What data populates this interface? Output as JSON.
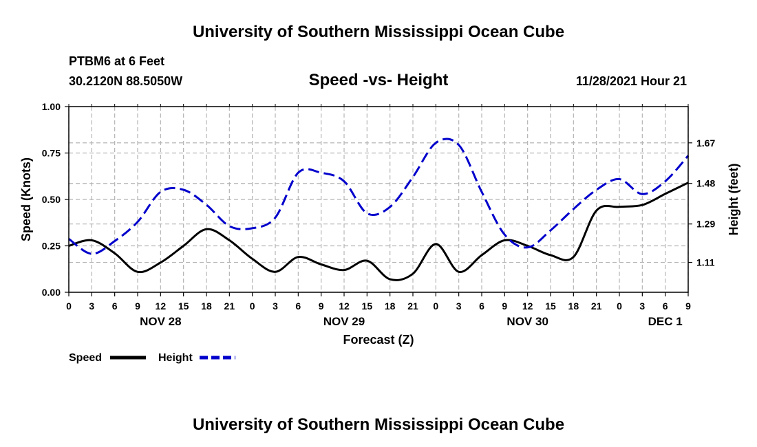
{
  "header": {
    "title": "University of Southern Mississippi Ocean Cube",
    "station": "PTBM6 at 6 Feet",
    "coords": "30.2120N  88.5050W",
    "subtitle": "Speed -vs- Height",
    "datetime": "11/28/2021 Hour 21",
    "footer_title": "University of Southern Mississippi Ocean Cube"
  },
  "chart_data": {
    "type": "line",
    "title": "Speed -vs- Height",
    "xlabel": "Forecast (Z)",
    "ylabel": "Speed (Knots)",
    "y2label": "Height (feet)",
    "xlim": [
      0,
      81
    ],
    "ylim": [
      0,
      1.0
    ],
    "y2lim": [
      0.97,
      1.84
    ],
    "grid": true,
    "x_ticks": [
      0,
      3,
      6,
      9,
      12,
      15,
      18,
      21,
      24,
      27,
      30,
      33,
      36,
      39,
      42,
      45,
      48,
      51,
      54,
      57,
      60,
      63,
      66,
      69,
      72,
      75,
      78,
      81
    ],
    "x_tick_labels": [
      "0",
      "3",
      "6",
      "9",
      "12",
      "15",
      "18",
      "21",
      "0",
      "3",
      "6",
      "9",
      "12",
      "15",
      "18",
      "21",
      "0",
      "3",
      "6",
      "9",
      "12",
      "15",
      "18",
      "21",
      "0",
      "3",
      "6",
      "9"
    ],
    "y_ticks": [
      0,
      0.25,
      0.5,
      0.75,
      1.0
    ],
    "y_tick_labels": [
      "0.00",
      "0.25",
      "0.50",
      "0.75",
      "1.00"
    ],
    "y2_ticks": [
      1.11,
      1.29,
      1.48,
      1.67
    ],
    "y2_tick_labels": [
      "1.11",
      "1.29",
      "1.48",
      "1.67"
    ],
    "date_labels": [
      {
        "x": 12,
        "label": "NOV 28"
      },
      {
        "x": 36,
        "label": "NOV 29"
      },
      {
        "x": 60,
        "label": "NOV 30"
      },
      {
        "x": 78,
        "label": "DEC 1"
      }
    ],
    "series": [
      {
        "name": "Speed",
        "color": "#000000",
        "axis": "left",
        "style": "solid",
        "x": [
          0,
          3,
          6,
          9,
          12,
          15,
          18,
          21,
          24,
          27,
          30,
          33,
          36,
          39,
          42,
          45,
          48,
          51,
          54,
          57,
          60,
          63,
          66,
          69,
          72,
          75,
          78,
          81
        ],
        "values": [
          0.25,
          0.28,
          0.21,
          0.11,
          0.16,
          0.25,
          0.34,
          0.28,
          0.18,
          0.11,
          0.19,
          0.15,
          0.12,
          0.17,
          0.07,
          0.1,
          0.26,
          0.11,
          0.2,
          0.28,
          0.25,
          0.2,
          0.19,
          0.44,
          0.46,
          0.47,
          0.53,
          0.59
        ]
      },
      {
        "name": "Height",
        "color": "#0000cc",
        "axis": "right",
        "style": "dashed",
        "x": [
          0,
          3,
          6,
          9,
          12,
          15,
          18,
          21,
          24,
          27,
          30,
          33,
          36,
          39,
          42,
          45,
          48,
          51,
          54,
          57,
          60,
          63,
          66,
          69,
          72,
          75,
          78,
          81
        ],
        "values": [
          1.22,
          1.15,
          1.21,
          1.3,
          1.44,
          1.45,
          1.38,
          1.28,
          1.27,
          1.32,
          1.53,
          1.53,
          1.49,
          1.34,
          1.37,
          1.51,
          1.67,
          1.66,
          1.44,
          1.24,
          1.18,
          1.26,
          1.36,
          1.45,
          1.5,
          1.43,
          1.49,
          1.61
        ]
      }
    ],
    "legend": {
      "placement": "bottom-left",
      "items": [
        "Speed",
        "Height"
      ]
    }
  }
}
